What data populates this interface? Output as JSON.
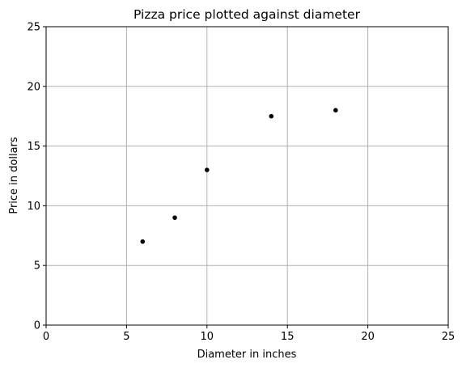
{
  "chart_data": {
    "type": "scatter",
    "title": "Pizza price plotted against diameter",
    "xlabel": "Diameter in inches",
    "ylabel": "Price in dollars",
    "xlim": [
      0,
      25
    ],
    "ylim": [
      0,
      25
    ],
    "xticks": [
      0,
      5,
      10,
      15,
      20,
      25
    ],
    "yticks": [
      0,
      5,
      10,
      15,
      20,
      25
    ],
    "grid": true,
    "point_color": "#000000",
    "grid_color": "#b0b0b0",
    "series": [
      {
        "x": [
          6,
          8,
          10,
          14,
          18
        ],
        "y": [
          7,
          9,
          13,
          17.5,
          18
        ]
      }
    ]
  }
}
